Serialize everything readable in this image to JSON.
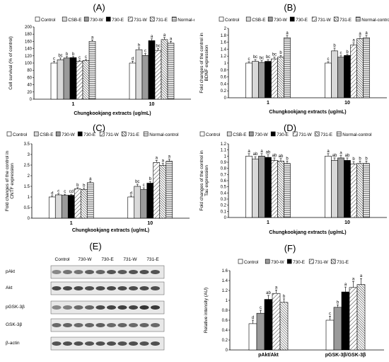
{
  "patterns": {
    "Control": "white",
    "CSB-E": "lightgray",
    "730-W": "darkgray",
    "730-E": "black",
    "731-W": "diag-light",
    "731-E": "diag-dense",
    "Normal-control": "horizontal"
  },
  "chart_data": [
    {
      "panel_letter": "(A)",
      "type": "bar",
      "legend": [
        "Control",
        "CSB-E",
        "730-W",
        "730-E",
        "731-W",
        "731-E",
        "Normal-control"
      ],
      "ylabel": "Cell survival (% of control)",
      "xlabel": "Chungkookjang extracts (ug/mL)",
      "ylim": [
        0,
        200
      ],
      "yticks": [
        "0",
        "20",
        "40",
        "60",
        "80",
        "100",
        "120",
        "140",
        "160",
        "180",
        "200"
      ],
      "yticks_v": [
        0,
        20,
        40,
        60,
        80,
        100,
        120,
        140,
        160,
        180,
        200
      ],
      "categories": [
        "1",
        "10"
      ],
      "series": [
        {
          "name": "Control",
          "values": [
            100,
            100
          ],
          "errors": [
            5,
            5
          ],
          "letters": [
            "c",
            "d"
          ]
        },
        {
          "name": "CSB-E",
          "values": [
            109,
            137
          ],
          "errors": [
            5,
            5
          ],
          "letters": [
            "bc",
            "b"
          ]
        },
        {
          "name": "730-W",
          "values": [
            114,
            121
          ],
          "errors": [
            4,
            5
          ],
          "letters": [
            "b",
            "c"
          ]
        },
        {
          "name": "730-E",
          "values": [
            115,
            162
          ],
          "errors": [
            3,
            5
          ],
          "letters": [
            "b",
            "a"
          ]
        },
        {
          "name": "731-W",
          "values": [
            105,
            135
          ],
          "errors": [
            3,
            5
          ],
          "letters": [
            "c",
            "bc"
          ]
        },
        {
          "name": "731-E",
          "values": [
            107,
            165
          ],
          "errors": [
            3,
            6
          ],
          "letters": [
            "c",
            "a"
          ]
        },
        {
          "name": "Normal-control",
          "values": [
            160,
            155
          ],
          "errors": [
            4,
            5
          ],
          "letters": [
            "a",
            "a"
          ]
        }
      ]
    },
    {
      "panel_letter": "(B)",
      "type": "bar",
      "legend": [
        "Control",
        "CSB-E",
        "730-W",
        "730-E",
        "731-W",
        "731-E",
        "Normal-control"
      ],
      "ylabel": "Fold changes of the control in BDNF expression",
      "xlabel": "Chungkookjang extracts (ug/mL)",
      "ylim": [
        0,
        2
      ],
      "yticks": [
        "0",
        "0.2",
        "0.4",
        "0.6",
        "0.8",
        "1",
        "1.2",
        "1.4",
        "1.6",
        "1.8",
        "2"
      ],
      "yticks_v": [
        0,
        0.2,
        0.4,
        0.6,
        0.8,
        1,
        1.2,
        1.4,
        1.6,
        1.8,
        2
      ],
      "categories": [
        "1",
        "10"
      ],
      "series": [
        {
          "name": "Control",
          "values": [
            1.0,
            1.0
          ],
          "errors": [
            0.04,
            0.04
          ],
          "letters": [
            "c",
            "c"
          ]
        },
        {
          "name": "CSB-E",
          "values": [
            1.05,
            1.35
          ],
          "errors": [
            0.05,
            0.08
          ],
          "letters": [
            "bc",
            "b"
          ]
        },
        {
          "name": "730-W",
          "values": [
            1.02,
            1.17
          ],
          "errors": [
            0.05,
            0.04
          ],
          "letters": [
            "bc",
            "c"
          ]
        },
        {
          "name": "730-E",
          "values": [
            1.05,
            1.22
          ],
          "errors": [
            0.05,
            0.03
          ],
          "letters": [
            "bc",
            "b"
          ]
        },
        {
          "name": "731-W",
          "values": [
            1.12,
            1.52
          ],
          "errors": [
            0.05,
            0.06
          ],
          "letters": [
            "bc",
            "a"
          ]
        },
        {
          "name": "731-E",
          "values": [
            1.17,
            1.7
          ],
          "errors": [
            0.05,
            0.08
          ],
          "letters": [
            "b",
            "a"
          ]
        },
        {
          "name": "Normal-control",
          "values": [
            1.73,
            1.73
          ],
          "errors": [
            0.07,
            0.07
          ],
          "letters": [
            "a",
            "a"
          ]
        }
      ]
    },
    {
      "panel_letter": "(C)",
      "type": "bar",
      "legend": [
        "Control",
        "CSB-E",
        "730-W",
        "730-E",
        "731-W",
        "731-E",
        "Normal-control"
      ],
      "ylabel": "Fold changes of the control in CNTF expression",
      "xlabel": "Chungkookjang extracts (ug/mL)",
      "ylim": [
        0,
        3.5
      ],
      "yticks": [
        "0",
        "0.5",
        "1",
        "1.5",
        "2",
        "2.5",
        "3",
        "3.5"
      ],
      "yticks_v": [
        0,
        0.5,
        1,
        1.5,
        2,
        2.5,
        3,
        3.5
      ],
      "categories": [
        "1",
        "10"
      ],
      "series": [
        {
          "name": "Control",
          "values": [
            1.0,
            1.0
          ],
          "errors": [
            0.05,
            0.05
          ],
          "letters": [
            "d",
            "d"
          ]
        },
        {
          "name": "CSB-E",
          "values": [
            1.1,
            1.5
          ],
          "errors": [
            0.05,
            0.1
          ],
          "letters": [
            "c",
            "bc"
          ]
        },
        {
          "name": "730-W",
          "values": [
            1.08,
            1.35
          ],
          "errors": [
            0.05,
            0.08
          ],
          "letters": [
            "c",
            "c"
          ]
        },
        {
          "name": "730-E",
          "values": [
            1.08,
            1.65
          ],
          "errors": [
            0.05,
            0.08
          ],
          "letters": [
            "cd",
            "b"
          ]
        },
        {
          "name": "731-W",
          "values": [
            1.38,
            2.62
          ],
          "errors": [
            0.06,
            0.1
          ],
          "letters": [
            "b",
            "a"
          ]
        },
        {
          "name": "731-E",
          "values": [
            1.35,
            2.48
          ],
          "errors": [
            0.06,
            0.1
          ],
          "letters": [
            "b",
            "a"
          ]
        },
        {
          "name": "Normal-control",
          "values": [
            1.67,
            2.68
          ],
          "errors": [
            0.07,
            0.1
          ],
          "letters": [
            "a",
            "a"
          ]
        }
      ]
    },
    {
      "panel_letter": "(D)",
      "type": "bar",
      "legend": [
        "Control",
        "CSB-E",
        "730-W",
        "730-E",
        "731-W",
        "731-E",
        "Normal-control"
      ],
      "ylabel": "Fold changes of the control in Tau expression",
      "xlabel": "Chungkookjang extracts (ug/mL)",
      "ylim": [
        0,
        1.2
      ],
      "yticks": [
        "0",
        "0.1",
        "0.2",
        "0.3",
        "0.4",
        "0.5",
        "0.6",
        "0.7",
        "0.8",
        "0.9",
        "1",
        "1.1",
        "1.2"
      ],
      "yticks_v": [
        0,
        0.1,
        0.2,
        0.3,
        0.4,
        0.5,
        0.6,
        0.7,
        0.8,
        0.9,
        1,
        1.1,
        1.2
      ],
      "categories": [
        "1",
        "10"
      ],
      "series": [
        {
          "name": "Control",
          "values": [
            1.0,
            1.0
          ],
          "errors": [
            0.04,
            0.04
          ],
          "letters": [
            "a",
            "a"
          ]
        },
        {
          "name": "CSB-E",
          "values": [
            0.95,
            0.93
          ],
          "errors": [
            0.04,
            0.04
          ],
          "letters": [
            "ab",
            "ab"
          ]
        },
        {
          "name": "730-W",
          "values": [
            1.0,
            0.97
          ],
          "errors": [
            0.04,
            0.04
          ],
          "letters": [
            "a",
            "a"
          ]
        },
        {
          "name": "730-E",
          "values": [
            0.98,
            0.93
          ],
          "errors": [
            0.04,
            0.04
          ],
          "letters": [
            "ab",
            "ab"
          ]
        },
        {
          "name": "731-W",
          "values": [
            0.93,
            0.87
          ],
          "errors": [
            0.04,
            0.04
          ],
          "letters": [
            "ab",
            "b"
          ]
        },
        {
          "name": "731-E",
          "values": [
            0.92,
            0.88
          ],
          "errors": [
            0.04,
            0.04
          ],
          "letters": [
            "ab",
            "b"
          ]
        },
        {
          "name": "Normal-control",
          "values": [
            0.88,
            0.88
          ],
          "errors": [
            0.04,
            0.04
          ],
          "letters": [
            "b",
            "b"
          ]
        }
      ]
    },
    {
      "panel_letter": "(F)",
      "type": "bar",
      "legend": [
        "Control",
        "730-W",
        "730-E",
        "731-W",
        "731-E"
      ],
      "ylabel": "Relative intensity (AU)",
      "xlabel": "",
      "ylim": [
        0,
        1.6
      ],
      "yticks": [
        "0",
        "0.2",
        "0.4",
        "0.6",
        "0.8",
        "1",
        "1.2",
        "1.4",
        "1.6"
      ],
      "yticks_v": [
        0,
        0.2,
        0.4,
        0.6,
        0.8,
        1,
        1.2,
        1.4,
        1.6
      ],
      "categories": [
        "pAkt/Akt",
        "pGSK-3β/GSK-3β"
      ],
      "series": [
        {
          "name": "Control",
          "values": [
            0.53,
            0.6
          ],
          "errors": [
            0.07,
            0.08
          ],
          "letters": [
            "d",
            "c"
          ]
        },
        {
          "name": "730-W",
          "values": [
            0.74,
            0.86
          ],
          "errors": [
            0.06,
            0.05
          ],
          "letters": [
            "c",
            "b"
          ]
        },
        {
          "name": "730-E",
          "values": [
            1.02,
            1.17
          ],
          "errors": [
            0.08,
            0.1
          ],
          "letters": [
            "ab",
            "a"
          ]
        },
        {
          "name": "731-W",
          "values": [
            1.14,
            1.26
          ],
          "errors": [
            0.07,
            0.12
          ],
          "letters": [
            "a",
            "a"
          ]
        },
        {
          "name": "731-E",
          "values": [
            0.96,
            1.32
          ],
          "errors": [
            0.07,
            0.12
          ],
          "letters": [
            "b",
            "a"
          ]
        }
      ]
    }
  ],
  "blot": {
    "panel_letter": "(E)",
    "lanes": [
      "Control",
      "730-W",
      "730-E",
      "731-W",
      "731-E"
    ],
    "rows": [
      "pAkt",
      "Akt",
      "pGSK-3β",
      "GSK-3β",
      "β-actin"
    ]
  }
}
